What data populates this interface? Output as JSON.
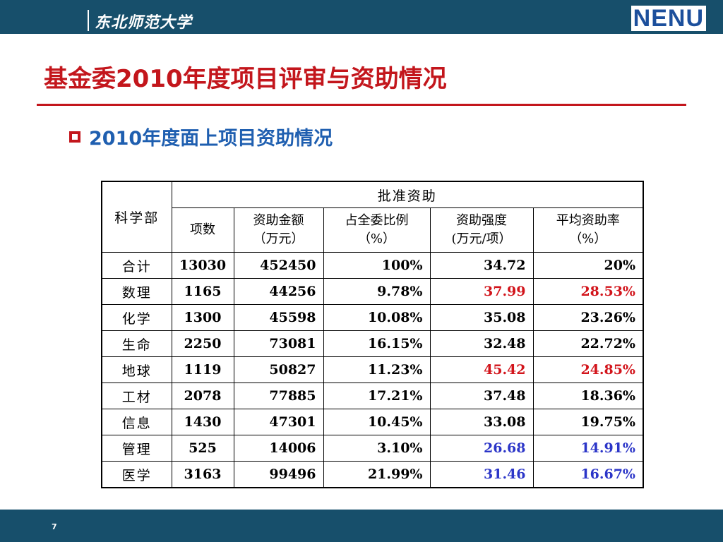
{
  "header": {
    "university": "东北师范大学",
    "logo": "NENU"
  },
  "title": "基金委2010年度项目评审与资助情况",
  "subtitle": "2010年度面上项目资助情况",
  "table": {
    "corner_header": "科学部",
    "group_header": "批准资助",
    "columns": [
      [
        "项数"
      ],
      [
        "资助金额",
        "（万元）"
      ],
      [
        "占全委比例",
        "（%）"
      ],
      [
        "资助强度",
        "(万元/项）"
      ],
      [
        "平均资助率",
        "（%）"
      ]
    ],
    "rows": [
      {
        "dept": "合计",
        "count": "13030",
        "amount": "452450",
        "ratio": "100%",
        "intensity": "34.72",
        "rate": "20%",
        "highlight": ""
      },
      {
        "dept": "数理",
        "count": "1165",
        "amount": "44256",
        "ratio": "9.78%",
        "intensity": "37.99",
        "rate": "28.53%",
        "highlight": "red"
      },
      {
        "dept": "化学",
        "count": "1300",
        "amount": "45598",
        "ratio": "10.08%",
        "intensity": "35.08",
        "rate": "23.26%",
        "highlight": ""
      },
      {
        "dept": "生命",
        "count": "2250",
        "amount": "73081",
        "ratio": "16.15%",
        "intensity": "32.48",
        "rate": "22.72%",
        "highlight": ""
      },
      {
        "dept": "地球",
        "count": "1119",
        "amount": "50827",
        "ratio": "11.23%",
        "intensity": "45.42",
        "rate": "24.85%",
        "highlight": "red"
      },
      {
        "dept": "工材",
        "count": "2078",
        "amount": "77885",
        "ratio": "17.21%",
        "intensity": "37.48",
        "rate": "18.36%",
        "highlight": ""
      },
      {
        "dept": "信息",
        "count": "1430",
        "amount": "47301",
        "ratio": "10.45%",
        "intensity": "33.08",
        "rate": "19.75%",
        "highlight": ""
      },
      {
        "dept": "管理",
        "count": "525",
        "amount": "14006",
        "ratio": "3.10%",
        "intensity": "26.68",
        "rate": "14.91%",
        "highlight": "blue"
      },
      {
        "dept": "医学",
        "count": "3163",
        "amount": "99496",
        "ratio": "21.99%",
        "intensity": "31.46",
        "rate": "16.67%",
        "highlight": "blue"
      }
    ]
  },
  "page_number": "7",
  "colors": {
    "bar": "#174f6b",
    "title_red": "#c3161c",
    "subtitle_blue": "#1f5fb0",
    "highlight_red": "#d2141b",
    "highlight_blue": "#2b35c8"
  }
}
